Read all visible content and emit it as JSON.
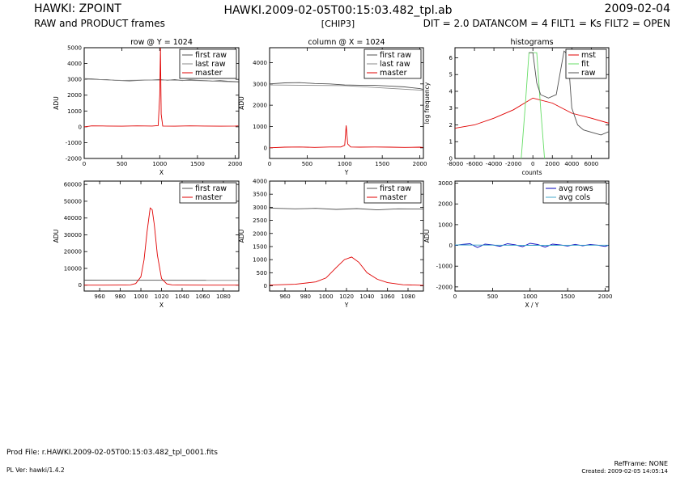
{
  "header": {
    "title": "HAWKI: ZPOINT",
    "subtitle": "RAW and PRODUCT frames",
    "file": "HAWKI.2009-02-05T00:15:03.482_tpl.ab",
    "chip": "[CHIP3]",
    "date": "2009-02-04",
    "params": "DIT = 2.0 DATANCOM = 4 FILT1 = Ks FILT2 = OPEN"
  },
  "footer": {
    "prod_file": "Prod File: r.HAWKI.2009-02-05T00:15:03.482_tpl_0001.fits",
    "pl_ver": "PL Ver: hawki/1.4.2",
    "ref_frame": "RefFrame: NONE",
    "created": "Created:  2009-02-05 14:05:14"
  },
  "colors": {
    "first_raw": "#505050",
    "last_raw": "#8a8a8a",
    "master": "#e00000",
    "fit": "#66dd66",
    "avg_rows": "#0000bb",
    "avg_cols": "#44aacc"
  },
  "chart_data": [
    {
      "id": "row",
      "type": "line",
      "title": "row @ Y = 1024",
      "xlabel": "X",
      "ylabel": "ADU",
      "xlim": [
        0,
        2048
      ],
      "ylim": [
        -2000,
        5000
      ],
      "xticks": [
        "0",
        "500",
        "1000",
        "1500",
        "2000"
      ],
      "yticks": [
        "-2000",
        "-1000",
        "0",
        "1000",
        "2000",
        "3000",
        "4000",
        "5000"
      ],
      "legend": "top-right",
      "series": [
        {
          "name": "first raw",
          "color": "first_raw",
          "x": [
            0,
            100,
            200,
            300,
            400,
            500,
            600,
            700,
            800,
            900,
            1000,
            1100,
            1200,
            1300,
            1400,
            1500,
            1600,
            1700,
            1800,
            1900,
            2000,
            2040
          ],
          "y": [
            3050,
            3030,
            2990,
            2980,
            2940,
            2920,
            2900,
            2930,
            2950,
            2960,
            2990,
            2940,
            2980,
            2920,
            2970,
            2940,
            2920,
            2890,
            2920,
            2880,
            2860,
            2850
          ]
        },
        {
          "name": "last raw",
          "color": "last_raw",
          "x": [
            0,
            500,
            1000,
            1500,
            2040
          ],
          "y": [
            3020,
            2930,
            2960,
            2920,
            2830
          ]
        },
        {
          "name": "master",
          "color": "master",
          "x": [
            0,
            100,
            300,
            500,
            700,
            900,
            980,
            1000,
            1010,
            1020,
            1040,
            1200,
            1400,
            1600,
            1800,
            2000,
            2040
          ],
          "y": [
            0,
            60,
            50,
            40,
            60,
            50,
            80,
            2000,
            5000,
            800,
            50,
            40,
            60,
            50,
            40,
            50,
            60
          ]
        }
      ]
    },
    {
      "id": "column",
      "type": "line",
      "title": "column @ X = 1024",
      "xlabel": "Y",
      "ylabel": "ADU",
      "xlim": [
        0,
        2048
      ],
      "ylim": [
        -500,
        4700
      ],
      "xticks": [
        "0",
        "500",
        "1000",
        "1500",
        "2000"
      ],
      "yticks": [
        "0",
        "1000",
        "2000",
        "3000",
        "4000"
      ],
      "legend": "top-right",
      "series": [
        {
          "name": "first raw",
          "color": "first_raw",
          "x": [
            0,
            200,
            400,
            600,
            800,
            1000,
            1200,
            1400,
            1600,
            1800,
            2000,
            2040
          ],
          "y": [
            3000,
            3050,
            3060,
            3020,
            3000,
            2950,
            2940,
            2930,
            2900,
            2860,
            2780,
            2750
          ]
        },
        {
          "name": "last raw",
          "color": "last_raw",
          "x": [
            0,
            1000,
            2040
          ],
          "y": [
            2950,
            2920,
            2700
          ]
        },
        {
          "name": "master",
          "color": "master",
          "x": [
            0,
            200,
            400,
            600,
            800,
            950,
            1000,
            1020,
            1040,
            1080,
            1200,
            1400,
            1600,
            1800,
            2000,
            2040
          ],
          "y": [
            0,
            30,
            40,
            20,
            40,
            40,
            120,
            1050,
            180,
            40,
            30,
            40,
            30,
            20,
            30,
            20
          ]
        }
      ]
    },
    {
      "id": "histograms",
      "type": "line",
      "title": "histograms",
      "xlabel": "counts",
      "ylabel": "log frequency",
      "xlim": [
        -8000,
        7800
      ],
      "ylim": [
        0,
        6.6
      ],
      "xticks": [
        "-8000",
        "-6000",
        "-4000",
        "-2000",
        "0",
        "2000",
        "4000",
        "6000"
      ],
      "yticks": [
        "0",
        "1",
        "2",
        "3",
        "4",
        "5",
        "6"
      ],
      "legend": "top-right",
      "series": [
        {
          "name": "mst",
          "color": "master",
          "x": [
            -8000,
            -6000,
            -4000,
            -2000,
            0,
            2000,
            4000,
            6000,
            7800
          ],
          "y": [
            1.8,
            2.0,
            2.4,
            2.9,
            3.6,
            3.3,
            2.7,
            2.4,
            2.1
          ]
        },
        {
          "name": "fit",
          "color": "fit",
          "x": [
            -1200,
            -800,
            -400,
            0,
            400,
            800,
            1200
          ],
          "y": [
            0,
            3.0,
            6.3,
            6.3,
            6.3,
            3.0,
            0
          ]
        },
        {
          "name": "raw",
          "color": "first_raw",
          "x": [
            -400,
            0,
            400,
            800,
            1600,
            2400,
            3200,
            3600,
            4000,
            4600,
            5200,
            6400,
            7000,
            7800
          ],
          "y": [
            6.3,
            6.3,
            4.5,
            3.8,
            3.6,
            3.8,
            6.4,
            6.2,
            3.0,
            2.0,
            1.7,
            1.5,
            1.4,
            1.6
          ]
        }
      ]
    },
    {
      "id": "row-zoom",
      "type": "line",
      "xlabel": "X",
      "ylabel": "ADU",
      "xlim": [
        945,
        1095
      ],
      "ylim": [
        -3500,
        62000
      ],
      "xticks": [
        "960",
        "980",
        "1000",
        "1020",
        "1040",
        "1060",
        "1080"
      ],
      "yticks": [
        "0",
        "10000",
        "20000",
        "30000",
        "40000",
        "50000",
        "60000"
      ],
      "legend": "top-right",
      "series": [
        {
          "name": "first raw",
          "color": "first_raw",
          "x": [
            945,
            1095
          ],
          "y": [
            3000,
            2900
          ]
        },
        {
          "name": "master",
          "color": "master",
          "x": [
            945,
            980,
            990,
            995,
            1000,
            1003,
            1006,
            1009,
            1011,
            1013,
            1016,
            1020,
            1025,
            1030,
            1040,
            1095
          ],
          "y": [
            0,
            50,
            200,
            1000,
            5000,
            15000,
            32000,
            46000,
            45000,
            36000,
            18000,
            4000,
            800,
            200,
            50,
            0
          ]
        }
      ]
    },
    {
      "id": "column-zoom",
      "type": "line",
      "xlabel": "Y",
      "ylabel": "ADU",
      "xlim": [
        945,
        1095
      ],
      "ylim": [
        -200,
        4000
      ],
      "xticks": [
        "960",
        "980",
        "1000",
        "1020",
        "1040",
        "1060",
        "1080"
      ],
      "yticks": [
        "0",
        "500",
        "1000",
        "1500",
        "2000",
        "2500",
        "3000",
        "3500",
        "4000"
      ],
      "legend": "top-right",
      "series": [
        {
          "name": "first raw",
          "color": "first_raw",
          "x": [
            945,
            970,
            990,
            1010,
            1030,
            1050,
            1070,
            1095
          ],
          "y": [
            2970,
            2940,
            2960,
            2920,
            2950,
            2900,
            2940,
            2930
          ]
        },
        {
          "name": "master",
          "color": "master",
          "x": [
            945,
            970,
            990,
            1000,
            1010,
            1018,
            1025,
            1032,
            1040,
            1050,
            1060,
            1075,
            1095
          ],
          "y": [
            30,
            60,
            150,
            300,
            700,
            1000,
            1100,
            900,
            500,
            250,
            120,
            40,
            20
          ]
        }
      ]
    },
    {
      "id": "averages",
      "type": "line",
      "xlabel": "X / Y",
      "ylabel": "ADU",
      "xlim": [
        0,
        2048
      ],
      "ylim": [
        -2200,
        3100
      ],
      "xticks": [
        "0",
        "500",
        "1000",
        "1500",
        "2000"
      ],
      "yticks": [
        "-2000",
        "-1000",
        "0",
        "1000",
        "2000",
        "3000"
      ],
      "legend": "top-right",
      "series": [
        {
          "name": "avg rows",
          "color": "avg_rows",
          "x": [
            0,
            100,
            200,
            300,
            400,
            500,
            600,
            700,
            800,
            900,
            1000,
            1100,
            1200,
            1300,
            1400,
            1500,
            1600,
            1700,
            1800,
            1900,
            2000,
            2040
          ],
          "y": [
            0,
            50,
            80,
            -100,
            60,
            20,
            -40,
            80,
            30,
            -60,
            100,
            40,
            -80,
            60,
            20,
            -30,
            50,
            -20,
            40,
            10,
            -50,
            0
          ]
        },
        {
          "name": "avg cols",
          "color": "avg_cols",
          "x": [
            0,
            1000,
            2040
          ],
          "y": [
            20,
            0,
            10
          ]
        }
      ]
    }
  ]
}
